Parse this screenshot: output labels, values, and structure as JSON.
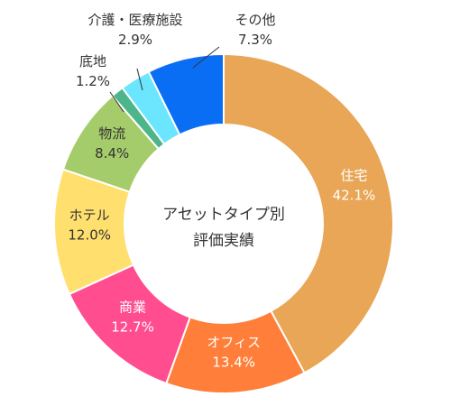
{
  "chart_data": {
    "type": "pie",
    "variant": "donut",
    "title": "",
    "center_label": [
      "アセットタイプ別",
      "評価実績"
    ],
    "slices": [
      {
        "name": "住宅",
        "value": 42.1,
        "label": "42.1%",
        "color": "#E8A656",
        "text_color": "#ffffff"
      },
      {
        "name": "オフィス",
        "value": 13.4,
        "label": "13.4%",
        "color": "#FF7F3A",
        "text_color": "#ffffff"
      },
      {
        "name": "商業",
        "value": 12.7,
        "label": "12.7%",
        "color": "#FF4D8F",
        "text_color": "#ffffff"
      },
      {
        "name": "ホテル",
        "value": 12.0,
        "label": "12.0%",
        "color": "#FFE06E",
        "text_color": "#333333"
      },
      {
        "name": "物流",
        "value": 8.4,
        "label": "8.4%",
        "color": "#A5CC6B",
        "text_color": "#333333"
      },
      {
        "name": "底地",
        "value": 1.2,
        "label": "1.2%",
        "color": "#4CB58A",
        "text_color": "#333333"
      },
      {
        "name": "介護・医療施設",
        "value": 2.9,
        "label": "2.9%",
        "color": "#6CE6FF",
        "text_color": "#333333"
      },
      {
        "name": "その他",
        "value": 7.3,
        "label": "7.3%",
        "color": "#0A6EF5",
        "text_color": "#333333"
      }
    ],
    "start_position": "top",
    "direction": "clockwise",
    "legend": "none"
  }
}
